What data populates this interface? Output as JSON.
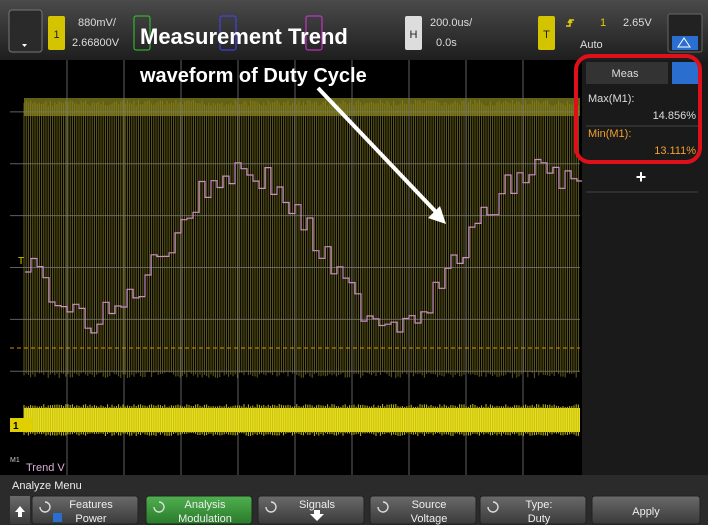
{
  "top_bar": {
    "ch1": "1",
    "ch1_scale": "880mV/",
    "ch1_offset": "2.66800V",
    "horizontal_label": "H",
    "time_scale": "200.0us/",
    "time_delay": "0.0s",
    "trigger_label": "T",
    "trigger_source": "1",
    "trigger_level": "2.65V",
    "trigger_mode": "Auto"
  },
  "annotations": {
    "title": "Measurement Trend",
    "subtitle": "waveform of Duty Cycle"
  },
  "measurements": {
    "tab": "Meas",
    "items": [
      {
        "label": "Max(M1):",
        "value": "14.856%"
      },
      {
        "label": "Min(M1):",
        "value": "13.111%"
      }
    ],
    "add": "+"
  },
  "graticule": {
    "trigger_marker": "T",
    "ground_marker": "1",
    "math_marker": "M1",
    "trend_label": "Trend V"
  },
  "menu": {
    "title": "Analyze Menu",
    "buttons": [
      {
        "label": "Features",
        "value": "Power"
      },
      {
        "label": "Analysis",
        "value": "Modulation"
      },
      {
        "label": "Signals"
      },
      {
        "label": "Source",
        "value": "Voltage"
      },
      {
        "label": "Type:",
        "value": "Duty"
      },
      {
        "label": "Apply"
      }
    ]
  }
}
